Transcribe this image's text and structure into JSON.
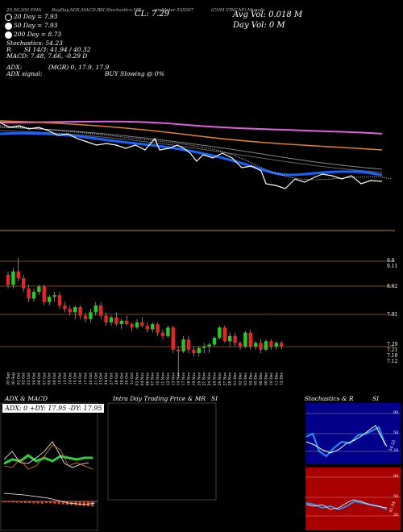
{
  "header": {
    "col1": "20,50,200 EMA",
    "col2": "BuyDay,ADX,MACD,R",
    "col3": "SI,Stochastics,MR",
    "col4": "omMeter 535267",
    "col5": "(COM VINCAP) Munafa"
  },
  "legend": {
    "ema20": "20 Day = 7.93",
    "ema50": "50 Day = 7.93",
    "ema200": "200 Day = 8.73",
    "stoch": "Stochastics: 54.23",
    "rsi": "SI 14/3: 41.94 / 40.32",
    "r_prefix": "R",
    "macd": "MACD: 7.48, 7.66, -0.29 D",
    "adx": "ADX:",
    "adx_vals": "(MGR) 0, 17.9, 17.9",
    "adx_signal": "ADX signal:",
    "buy": "BUY Slowing @ 0%",
    "colors": {
      "ema20": "#ffffff",
      "ema50": "#ffffff",
      "ema200": "#ff66ff"
    }
  },
  "cl": "CL: 7.29",
  "avg_vol": "Avg Vol: 0.018   M",
  "day_vol": "Day Vol: 0   M",
  "price_labels": [
    "9.8",
    "8.62",
    "7.91",
    "7.29",
    "7.12"
  ],
  "price_labels2": [
    "9.11",
    "7.21",
    "7.18"
  ],
  "panels": {
    "adx_title": "ADX  & MACD",
    "intra_title": "Intra  Day Trading Price  & MR",
    "intra_right": "SI",
    "stoch_title": "Stochastics & R",
    "stoch_right": "SI",
    "adx_box": "ADX: 0  +DY: 17.95 -DY: 17.95",
    "stoch_axis": [
      "80",
      "50",
      "20"
    ],
    "rsi_axis": [
      "80",
      "50",
      "20"
    ],
    "stoch_val": "54.23",
    "rsi_val": "41.94"
  },
  "chart_data": {
    "type": "candlestick",
    "dates": [
      "28 Sep",
      "30 Sep",
      "01 Oct",
      "02 Oct",
      "03 Oct",
      "04 Oct",
      "06 Oct",
      "07 Oct",
      "08 Oct",
      "09 Oct",
      "10 Oct",
      "13 Oct",
      "14 Oct",
      "15 Oct",
      "16 Oct",
      "17 Oct",
      "20 Oct",
      "21 Oct",
      "23 Oct",
      "24 Oct",
      "27 Oct",
      "28 Oct",
      "29 Oct",
      "30 Oct",
      "31 Oct",
      "03 Nov",
      "04 Nov",
      "06 Nov",
      "07 Nov",
      "10 Nov",
      "11 Nov",
      "12 Nov",
      "13 Nov",
      "14 Nov",
      "17 Nov",
      "18 Nov",
      "19 Nov",
      "20 Nov",
      "21 Nov",
      "24 Nov",
      "25 Nov",
      "26 Nov",
      "27 Nov",
      "28 Nov",
      "01 Dec",
      "02 Dec",
      "03 Dec",
      "04 Dec",
      "05 Dec",
      "08 Dec",
      "09 Dec",
      "10 Dec",
      "11 Dec",
      "12 Dec"
    ],
    "candles": [
      [
        9.4,
        9.5,
        9.0,
        9.1
      ],
      [
        9.1,
        9.6,
        9.0,
        9.5
      ],
      [
        9.5,
        9.9,
        9.2,
        9.3
      ],
      [
        9.3,
        9.4,
        8.9,
        9.0
      ],
      [
        9.0,
        9.1,
        8.6,
        8.7
      ],
      [
        8.7,
        9.0,
        8.6,
        8.9
      ],
      [
        8.9,
        9.1,
        8.8,
        9.05
      ],
      [
        9.05,
        9.1,
        8.5,
        8.6
      ],
      [
        8.6,
        8.8,
        8.5,
        8.75
      ],
      [
        8.75,
        8.9,
        8.6,
        8.8
      ],
      [
        8.8,
        8.9,
        8.4,
        8.5
      ],
      [
        8.5,
        8.6,
        8.3,
        8.4
      ],
      [
        8.4,
        8.5,
        8.2,
        8.3
      ],
      [
        8.3,
        8.5,
        8.1,
        8.45
      ],
      [
        8.45,
        8.5,
        8.1,
        8.2
      ],
      [
        8.2,
        8.3,
        8.0,
        8.1
      ],
      [
        8.1,
        8.4,
        8.0,
        8.3
      ],
      [
        8.3,
        8.6,
        8.2,
        8.5
      ],
      [
        8.5,
        8.6,
        8.1,
        8.2
      ],
      [
        8.2,
        8.3,
        7.9,
        8.0
      ],
      [
        8.0,
        8.2,
        7.9,
        8.15
      ],
      [
        8.15,
        8.3,
        7.9,
        7.95
      ],
      [
        7.95,
        8.1,
        7.8,
        8.05
      ],
      [
        8.05,
        8.2,
        7.9,
        7.95
      ],
      [
        7.95,
        8.0,
        7.75,
        7.85
      ],
      [
        7.85,
        8.1,
        7.8,
        8.0
      ],
      [
        8.0,
        8.15,
        7.85,
        7.9
      ],
      [
        7.9,
        8.0,
        7.7,
        7.8
      ],
      [
        7.8,
        8.0,
        7.7,
        7.95
      ],
      [
        7.95,
        8.0,
        7.6,
        7.7
      ],
      [
        7.7,
        7.8,
        7.5,
        7.6
      ],
      [
        7.6,
        7.9,
        7.55,
        7.85
      ],
      [
        7.85,
        7.9,
        7.1,
        7.2
      ],
      [
        7.2,
        7.3,
        6.4,
        7.15
      ],
      [
        7.15,
        7.6,
        7.1,
        7.5
      ],
      [
        7.5,
        7.6,
        7.1,
        7.2
      ],
      [
        7.2,
        7.3,
        7.0,
        7.1
      ],
      [
        7.1,
        7.3,
        7.0,
        7.25
      ],
      [
        7.25,
        7.4,
        7.1,
        7.3
      ],
      [
        7.3,
        7.4,
        7.1,
        7.35
      ],
      [
        7.35,
        7.6,
        7.3,
        7.55
      ],
      [
        7.55,
        7.9,
        7.5,
        7.85
      ],
      [
        7.85,
        7.9,
        7.4,
        7.45
      ],
      [
        7.45,
        7.7,
        7.3,
        7.6
      ],
      [
        7.6,
        7.7,
        7.3,
        7.4
      ],
      [
        7.4,
        7.45,
        7.2,
        7.3
      ],
      [
        7.3,
        7.75,
        7.25,
        7.7
      ],
      [
        7.7,
        7.8,
        7.2,
        7.3
      ],
      [
        7.3,
        7.45,
        7.2,
        7.4
      ],
      [
        7.4,
        7.5,
        7.1,
        7.2
      ],
      [
        7.2,
        7.5,
        7.15,
        7.45
      ],
      [
        7.45,
        7.5,
        7.2,
        7.3
      ],
      [
        7.3,
        7.45,
        7.2,
        7.4
      ],
      [
        7.4,
        7.45,
        7.2,
        7.29
      ]
    ]
  }
}
